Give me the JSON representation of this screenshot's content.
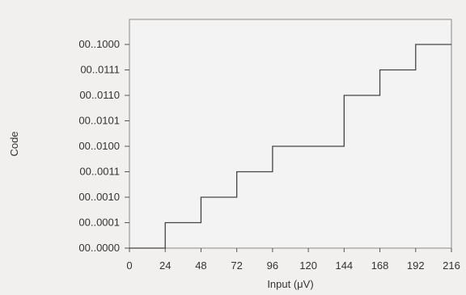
{
  "chart_data": {
    "type": "line",
    "title": "",
    "xlabel": "Input (μV)",
    "ylabel": "Code",
    "xlim": [
      0,
      216
    ],
    "ylim": [
      0,
      8
    ],
    "x_ticks": [
      "0",
      "24",
      "48",
      "72",
      "96",
      "120",
      "144",
      "168",
      "192",
      "216"
    ],
    "x_tick_values": [
      0,
      24,
      48,
      72,
      96,
      120,
      144,
      168,
      192,
      216
    ],
    "y_ticks": [
      "00..0000",
      "00..0001",
      "00..0010",
      "00..0011",
      "00..0100",
      "00..0101",
      "00..0110",
      "00..0111",
      "00..1000"
    ],
    "grid": false,
    "step_shape": "hv",
    "series": [
      {
        "x": [
          0,
          24,
          48,
          72,
          96,
          144,
          168,
          192,
          216
        ],
        "y": [
          0,
          1,
          2,
          3,
          4,
          6,
          7,
          8,
          8
        ]
      }
    ]
  },
  "colors": {
    "plot_background": "#f3f3f3",
    "line": "#444444",
    "frame": "#8a8a8a",
    "page_background": "#f1f0ee"
  }
}
